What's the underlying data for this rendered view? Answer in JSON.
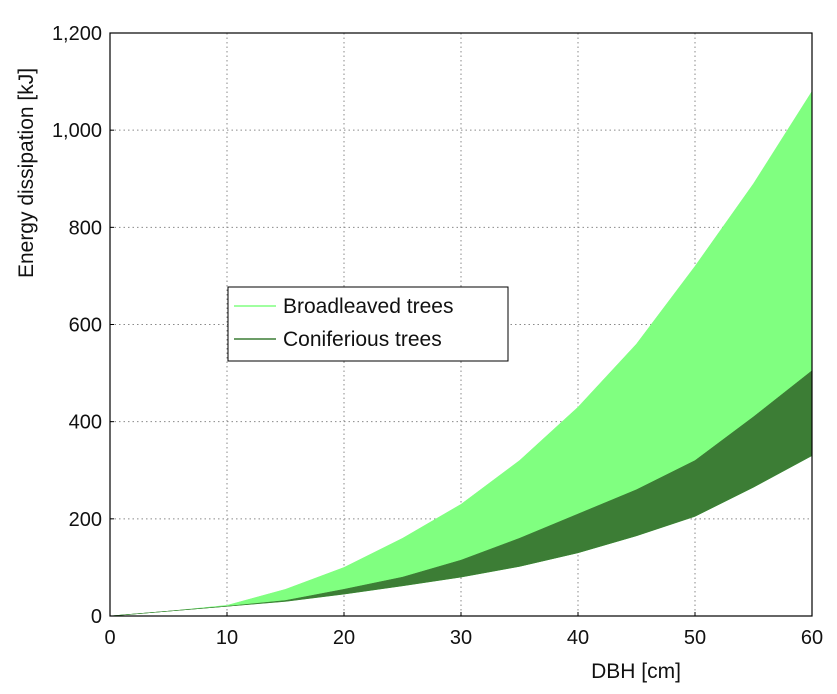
{
  "chart_data": {
    "type": "area",
    "xlabel": "DBH [cm]",
    "ylabel": "Energy dissipation [kJ]",
    "xlim": [
      0,
      60
    ],
    "ylim": [
      0,
      1200
    ],
    "xticks": [
      0,
      10,
      20,
      30,
      40,
      50,
      60
    ],
    "yticks": [
      0,
      200,
      400,
      600,
      800,
      1000,
      1200
    ],
    "xtick_labels": [
      "0",
      "10",
      "20",
      "30",
      "40",
      "50",
      "60"
    ],
    "ytick_labels": [
      "0",
      "200",
      "400",
      "600",
      "800",
      "1,000",
      "1,200"
    ],
    "grid": true,
    "legend_position": "center-left",
    "series": [
      {
        "name": "Broadleaved trees",
        "color": "#80ff80",
        "x": [
          0,
          5,
          10,
          15,
          20,
          25,
          30,
          35,
          40,
          45,
          50,
          55,
          60
        ],
        "lower": [
          0,
          10,
          20,
          30,
          45,
          62,
          80,
          102,
          130,
          165,
          205,
          265,
          330
        ],
        "upper": [
          0,
          10,
          22,
          55,
          100,
          160,
          230,
          320,
          430,
          560,
          720,
          890,
          1080
        ]
      },
      {
        "name": "Coniferious trees",
        "color": "#3c7d35",
        "x": [
          0,
          5,
          10,
          15,
          20,
          25,
          30,
          35,
          40,
          45,
          50,
          55,
          60
        ],
        "lower": [
          0,
          10,
          20,
          30,
          45,
          62,
          80,
          102,
          130,
          165,
          205,
          265,
          330
        ],
        "upper": [
          0,
          10,
          20,
          32,
          55,
          80,
          115,
          160,
          210,
          260,
          320,
          410,
          505
        ]
      }
    ]
  }
}
